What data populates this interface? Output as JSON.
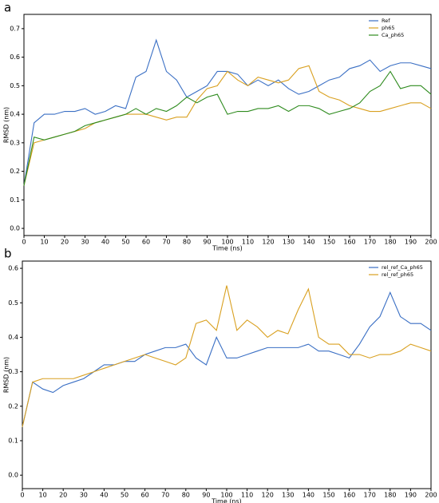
{
  "chart_data": [
    {
      "type": "line",
      "panel_label": "a",
      "x_label": "Time (ns)",
      "y_label": "RMSD (nm)",
      "x": [
        0,
        5,
        10,
        15,
        20,
        25,
        30,
        35,
        40,
        45,
        50,
        55,
        60,
        65,
        70,
        75,
        80,
        85,
        90,
        95,
        100,
        105,
        110,
        115,
        120,
        125,
        130,
        135,
        140,
        145,
        150,
        155,
        160,
        165,
        170,
        175,
        180,
        185,
        190,
        195,
        200
      ],
      "series": [
        {
          "name": "Ref",
          "color": "#3a6fc4",
          "values": [
            0.15,
            0.37,
            0.4,
            0.4,
            0.41,
            0.41,
            0.42,
            0.4,
            0.41,
            0.43,
            0.42,
            0.53,
            0.55,
            0.66,
            0.55,
            0.52,
            0.46,
            0.48,
            0.5,
            0.55,
            0.55,
            0.54,
            0.5,
            0.52,
            0.5,
            0.52,
            0.49,
            0.47,
            0.48,
            0.5,
            0.52,
            0.53,
            0.56,
            0.57,
            0.59,
            0.55,
            0.57,
            0.58,
            0.58,
            0.57,
            0.56
          ]
        },
        {
          "name": "ph65",
          "color": "#d9a020",
          "values": [
            0.15,
            0.3,
            0.31,
            0.32,
            0.33,
            0.34,
            0.35,
            0.37,
            0.38,
            0.39,
            0.4,
            0.4,
            0.4,
            0.39,
            0.38,
            0.39,
            0.39,
            0.45,
            0.49,
            0.5,
            0.55,
            0.52,
            0.5,
            0.53,
            0.52,
            0.51,
            0.52,
            0.56,
            0.57,
            0.48,
            0.46,
            0.45,
            0.43,
            0.42,
            0.41,
            0.41,
            0.42,
            0.43,
            0.44,
            0.44,
            0.42
          ]
        },
        {
          "name": "Ca_ph65",
          "color": "#2e8b1e",
          "values": [
            0.15,
            0.32,
            0.31,
            0.32,
            0.33,
            0.34,
            0.36,
            0.37,
            0.38,
            0.39,
            0.4,
            0.42,
            0.4,
            0.42,
            0.41,
            0.43,
            0.46,
            0.44,
            0.46,
            0.47,
            0.4,
            0.41,
            0.41,
            0.42,
            0.42,
            0.43,
            0.41,
            0.43,
            0.43,
            0.42,
            0.4,
            0.41,
            0.42,
            0.44,
            0.48,
            0.5,
            0.55,
            0.49,
            0.5,
            0.5,
            0.47
          ]
        }
      ],
      "xlim": [
        0,
        200
      ],
      "xticks": [
        0,
        10,
        20,
        30,
        40,
        50,
        60,
        70,
        80,
        90,
        100,
        110,
        120,
        130,
        140,
        150,
        160,
        170,
        180,
        190,
        200
      ],
      "ylim": [
        -0.025,
        0.75
      ],
      "yticks": [
        {
          "value": 0,
          "label": "0.0"
        },
        0.1,
        0.2,
        0.3,
        0.4,
        0.5,
        0.6,
        0.7
      ],
      "legend": "upper right"
    },
    {
      "type": "line",
      "panel_label": "b",
      "x_label": "Time (ns)",
      "y_label": "RMSD (nm)",
      "x": [
        0,
        5,
        10,
        15,
        20,
        25,
        30,
        35,
        40,
        45,
        50,
        55,
        60,
        65,
        70,
        75,
        80,
        85,
        90,
        95,
        100,
        105,
        110,
        115,
        120,
        125,
        130,
        135,
        140,
        145,
        150,
        155,
        160,
        165,
        170,
        175,
        180,
        185,
        190,
        195,
        200
      ],
      "series": [
        {
          "name": "rel_ref_Ca_ph65",
          "color": "#3a6fc4",
          "values": [
            0.14,
            0.27,
            0.25,
            0.24,
            0.26,
            0.27,
            0.28,
            0.3,
            0.32,
            0.32,
            0.33,
            0.33,
            0.35,
            0.36,
            0.37,
            0.37,
            0.38,
            0.34,
            0.32,
            0.4,
            0.34,
            0.34,
            0.35,
            0.36,
            0.37,
            0.37,
            0.37,
            0.37,
            0.38,
            0.36,
            0.36,
            0.35,
            0.34,
            0.38,
            0.43,
            0.46,
            0.53,
            0.46,
            0.44,
            0.44,
            0.42
          ]
        },
        {
          "name": "rel_ref_ph65",
          "color": "#d9a020",
          "values": [
            0.14,
            0.27,
            0.28,
            0.28,
            0.28,
            0.28,
            0.29,
            0.3,
            0.31,
            0.32,
            0.33,
            0.34,
            0.35,
            0.34,
            0.33,
            0.32,
            0.34,
            0.44,
            0.45,
            0.42,
            0.55,
            0.42,
            0.45,
            0.43,
            0.4,
            0.42,
            0.41,
            0.48,
            0.54,
            0.4,
            0.38,
            0.38,
            0.35,
            0.35,
            0.34,
            0.35,
            0.35,
            0.36,
            0.38,
            0.37,
            0.36
          ]
        }
      ],
      "xlim": [
        0,
        200
      ],
      "xticks": [
        0,
        10,
        20,
        30,
        40,
        50,
        60,
        70,
        80,
        90,
        100,
        110,
        120,
        130,
        140,
        150,
        160,
        170,
        180,
        190,
        200
      ],
      "ylim": [
        -0.039,
        0.621
      ],
      "yticks": [
        {
          "value": 0,
          "label": "0.0"
        },
        0.1,
        0.2,
        0.3,
        0.4,
        0.5,
        0.6
      ],
      "legend": "upper right"
    }
  ]
}
